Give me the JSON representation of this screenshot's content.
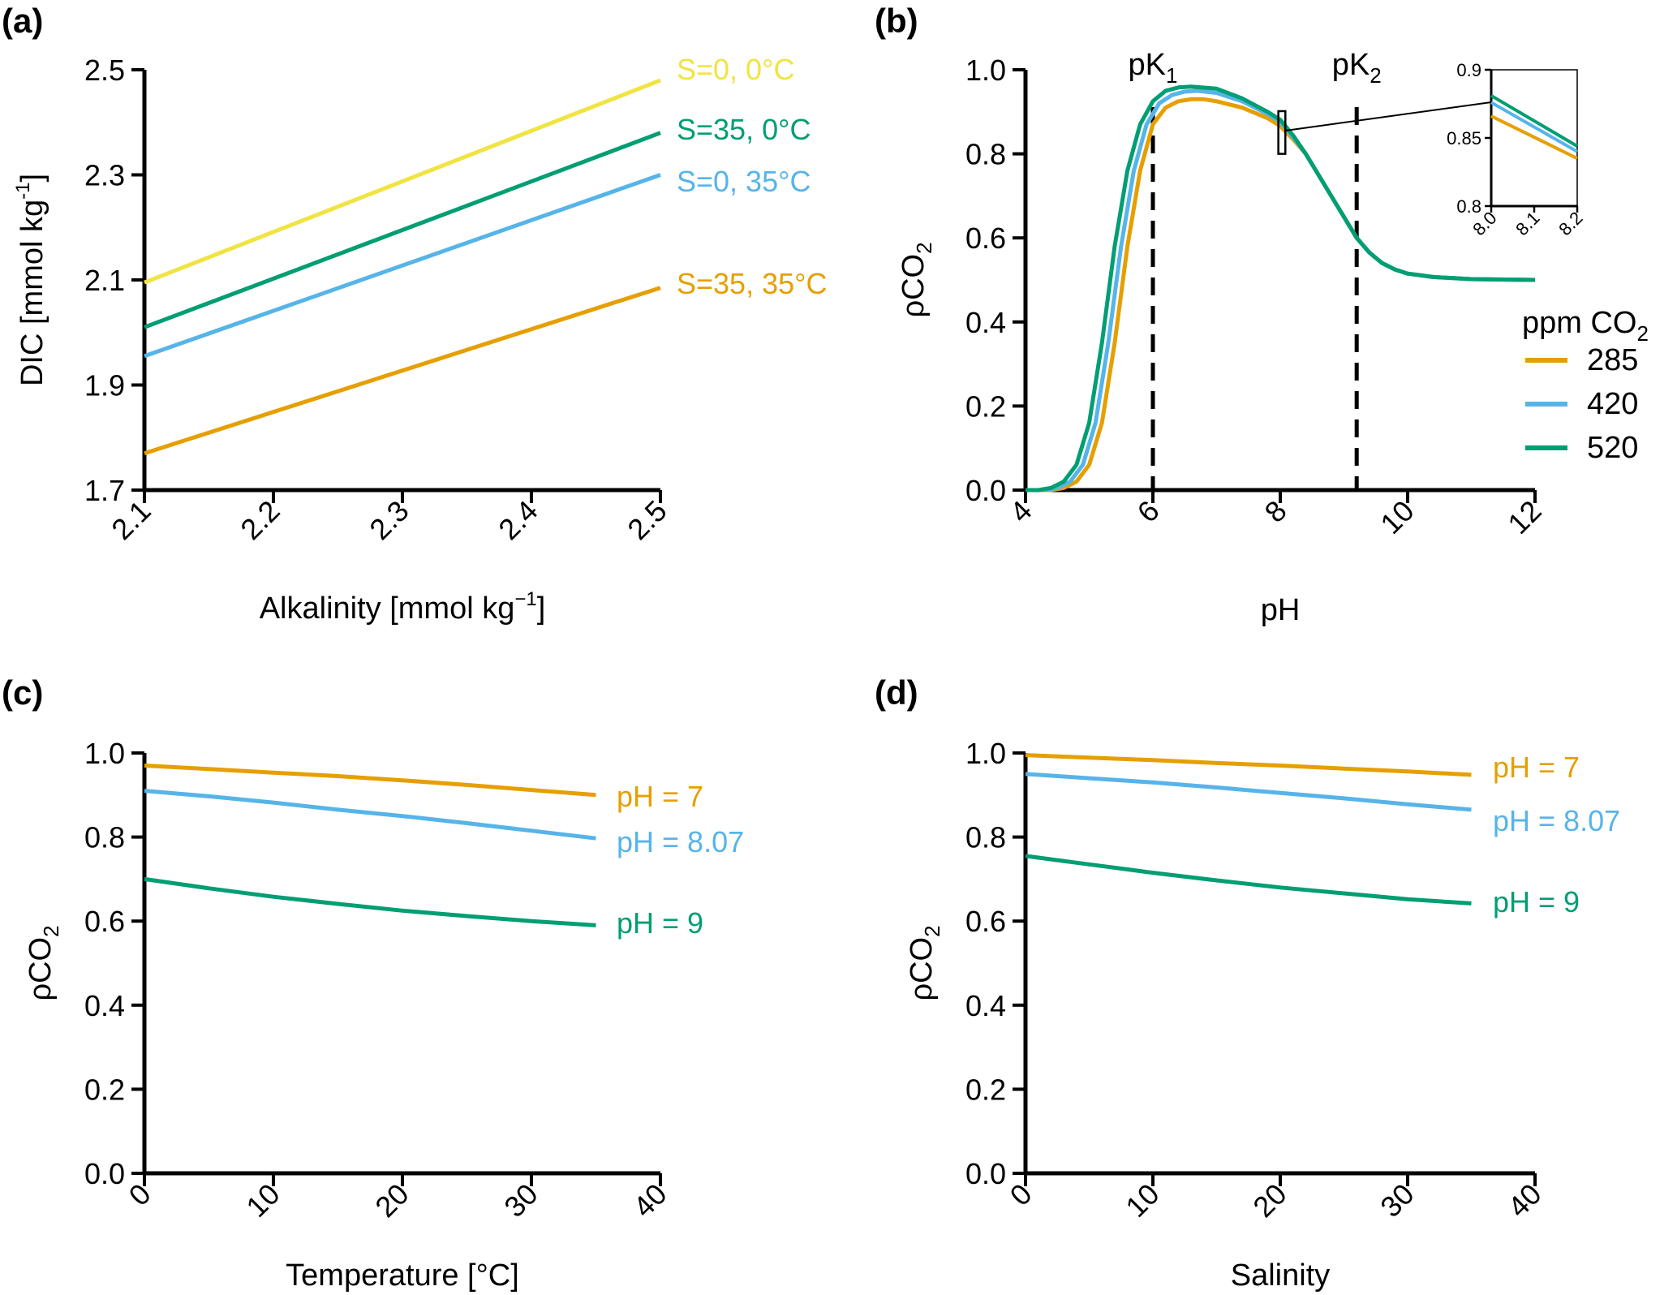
{
  "chart_data": [
    {
      "type": "line",
      "panel": "(a)",
      "xlabel": "Alkalinity [mmol kg",
      "xlabel_sup": "−1",
      "xlabel_end": "]",
      "ylabel": "DIC [mmol kg",
      "ylabel_sup": "-1",
      "ylabel_end": "]",
      "xlim": [
        2.1,
        2.5
      ],
      "ylim": [
        1.7,
        2.5
      ],
      "xticks": [
        "2.1",
        "2.2",
        "2.3",
        "2.4",
        "2.5"
      ],
      "yticks": [
        "1.7",
        "1.9",
        "2.1",
        "2.3",
        "2.5"
      ],
      "series": [
        {
          "name": "S=0, 0°C",
          "color": "#F0E442",
          "x": [
            2.1,
            2.5
          ],
          "y": [
            2.095,
            2.48
          ]
        },
        {
          "name": "S=35, 0°C",
          "color": "#009E73",
          "x": [
            2.1,
            2.5
          ],
          "y": [
            2.01,
            2.38
          ]
        },
        {
          "name": "S=0, 35°C",
          "color": "#56B4E9",
          "x": [
            2.1,
            2.5
          ],
          "y": [
            1.955,
            2.3
          ]
        },
        {
          "name": "S=35, 35°C",
          "color": "#E69F00",
          "x": [
            2.1,
            2.5
          ],
          "y": [
            1.77,
            2.085
          ]
        }
      ]
    },
    {
      "type": "line",
      "panel": "(b)",
      "xlabel": "pH",
      "ylabel": "ρCO",
      "ylabel_sub": "2",
      "xlim": [
        4,
        12
      ],
      "ylim": [
        0,
        1
      ],
      "xticks": [
        "4",
        "6",
        "8",
        "10",
        "12"
      ],
      "yticks": [
        "0.0",
        "0.2",
        "0.4",
        "0.6",
        "0.8",
        "1.0"
      ],
      "vlines": [
        {
          "label": "pK",
          "sub": "1",
          "x": 6.0
        },
        {
          "label": "pK",
          "sub": "2",
          "x": 9.2
        }
      ],
      "legend_title": "ppm CO",
      "legend_title_sub": "2",
      "series": [
        {
          "name": "285",
          "color": "#E69F00",
          "x": [
            4.0,
            4.4,
            4.6,
            4.8,
            5.0,
            5.2,
            5.4,
            5.6,
            5.8,
            6.0,
            6.2,
            6.4,
            6.6,
            6.8,
            7.0,
            7.4,
            7.8,
            8.0,
            8.2,
            8.4,
            8.6,
            8.8,
            9.0,
            9.2,
            9.4,
            9.6,
            9.8,
            10.0,
            10.4,
            11.0,
            12.0
          ],
          "y": [
            0.0,
            0.0,
            0.005,
            0.02,
            0.06,
            0.16,
            0.35,
            0.58,
            0.76,
            0.87,
            0.91,
            0.925,
            0.93,
            0.93,
            0.925,
            0.91,
            0.885,
            0.866,
            0.835,
            0.8,
            0.75,
            0.7,
            0.65,
            0.6,
            0.565,
            0.54,
            0.525,
            0.515,
            0.507,
            0.502,
            0.5
          ]
        },
        {
          "name": "420",
          "color": "#56B4E9",
          "x": [
            4.0,
            4.3,
            4.5,
            4.7,
            4.9,
            5.1,
            5.3,
            5.5,
            5.7,
            5.9,
            6.1,
            6.3,
            6.5,
            6.7,
            7.0,
            7.4,
            7.8,
            8.0,
            8.2,
            8.4,
            8.6,
            8.8,
            9.0,
            9.2,
            9.4,
            9.6,
            9.8,
            10.0,
            10.4,
            11.0,
            12.0
          ],
          "y": [
            0.0,
            0.0,
            0.005,
            0.02,
            0.06,
            0.16,
            0.35,
            0.58,
            0.76,
            0.87,
            0.92,
            0.94,
            0.948,
            0.95,
            0.945,
            0.925,
            0.895,
            0.876,
            0.84,
            0.8,
            0.75,
            0.7,
            0.65,
            0.6,
            0.565,
            0.54,
            0.525,
            0.515,
            0.507,
            0.502,
            0.5
          ]
        },
        {
          "name": "520",
          "color": "#009E73",
          "x": [
            4.0,
            4.2,
            4.4,
            4.6,
            4.8,
            5.0,
            5.2,
            5.4,
            5.6,
            5.8,
            6.0,
            6.2,
            6.4,
            6.6,
            7.0,
            7.4,
            7.8,
            8.0,
            8.2,
            8.4,
            8.6,
            8.8,
            9.0,
            9.2,
            9.4,
            9.6,
            9.8,
            10.0,
            10.4,
            11.0,
            12.0
          ],
          "y": [
            0.0,
            0.0,
            0.005,
            0.02,
            0.06,
            0.16,
            0.35,
            0.58,
            0.76,
            0.87,
            0.925,
            0.95,
            0.958,
            0.96,
            0.955,
            0.932,
            0.9,
            0.881,
            0.844,
            0.8,
            0.75,
            0.7,
            0.65,
            0.6,
            0.565,
            0.54,
            0.525,
            0.515,
            0.507,
            0.502,
            0.5
          ]
        }
      ],
      "inset": {
        "xlim": [
          8.0,
          8.2
        ],
        "ylim": [
          0.8,
          0.9
        ],
        "xticks": [
          "8.0",
          "8.1",
          "8.2"
        ],
        "yticks": [
          "0.8",
          "0.85",
          "0.9"
        ],
        "zoom_box": {
          "x": [
            7.97,
            8.08
          ],
          "y": [
            0.8,
            0.89
          ]
        }
      }
    },
    {
      "type": "line",
      "panel": "(c)",
      "xlabel": "Temperature [°C]",
      "ylabel": "ρCO",
      "ylabel_sub": "2",
      "xlim": [
        0,
        40
      ],
      "ylim": [
        0,
        1
      ],
      "xticks": [
        "0",
        "10",
        "20",
        "30",
        "40"
      ],
      "yticks": [
        "0.0",
        "0.2",
        "0.4",
        "0.6",
        "0.8",
        "1.0"
      ],
      "series": [
        {
          "name": "pH = 7",
          "color": "#E69F00",
          "x": [
            0,
            5,
            10,
            15,
            20,
            25,
            30,
            35
          ],
          "y": [
            0.97,
            0.962,
            0.953,
            0.945,
            0.935,
            0.924,
            0.912,
            0.9
          ]
        },
        {
          "name": "pH = 8.07",
          "color": "#56B4E9",
          "x": [
            0,
            5,
            10,
            15,
            20,
            25,
            30,
            35
          ],
          "y": [
            0.91,
            0.897,
            0.882,
            0.865,
            0.85,
            0.833,
            0.815,
            0.797
          ]
        },
        {
          "name": "pH = 9",
          "color": "#009E73",
          "x": [
            0,
            5,
            10,
            15,
            20,
            25,
            30,
            35
          ],
          "y": [
            0.7,
            0.678,
            0.658,
            0.641,
            0.625,
            0.612,
            0.6,
            0.59
          ]
        }
      ]
    },
    {
      "type": "line",
      "panel": "(d)",
      "xlabel": "Salinity",
      "ylabel": "ρCO",
      "ylabel_sub": "2",
      "xlim": [
        0,
        40
      ],
      "ylim": [
        0,
        1
      ],
      "xticks": [
        "0",
        "10",
        "20",
        "30",
        "40"
      ],
      "yticks": [
        "0.0",
        "0.2",
        "0.4",
        "0.6",
        "0.8",
        "1.0"
      ],
      "series": [
        {
          "name": "pH = 7",
          "color": "#E69F00",
          "x": [
            0,
            5,
            10,
            15,
            20,
            25,
            30,
            35
          ],
          "y": [
            0.995,
            0.989,
            0.983,
            0.976,
            0.97,
            0.963,
            0.956,
            0.948
          ]
        },
        {
          "name": "pH = 8.07",
          "color": "#56B4E9",
          "x": [
            0,
            5,
            10,
            15,
            20,
            25,
            30,
            35
          ],
          "y": [
            0.95,
            0.94,
            0.93,
            0.918,
            0.905,
            0.892,
            0.878,
            0.865
          ]
        },
        {
          "name": "pH = 9",
          "color": "#009E73",
          "x": [
            0,
            5,
            10,
            15,
            20,
            25,
            30,
            35
          ],
          "y": [
            0.755,
            0.735,
            0.715,
            0.697,
            0.68,
            0.666,
            0.652,
            0.642
          ]
        }
      ]
    }
  ]
}
